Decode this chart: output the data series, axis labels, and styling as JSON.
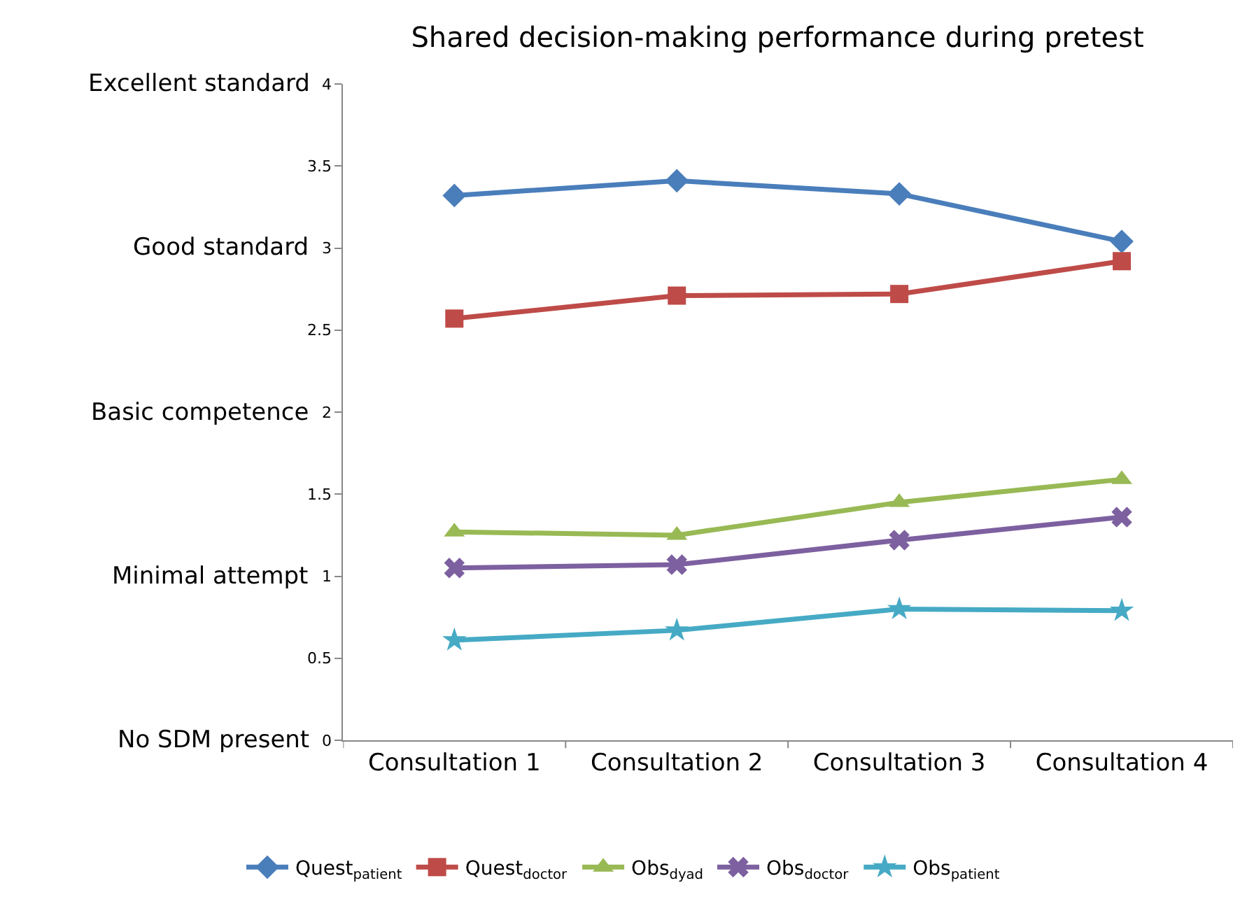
{
  "chart_data": {
    "type": "line",
    "title": "Shared decision-making performance during pretest",
    "categories": [
      "Consultation 1",
      "Consultation 2",
      "Consultation 3",
      "Consultation 4"
    ],
    "series": [
      {
        "name": "Quest$_{patient}$",
        "color": "#4a7ebb",
        "marker": "diamond",
        "values": [
          3.32,
          3.41,
          3.33,
          3.04
        ]
      },
      {
        "name": "Quest$_{doctor}$",
        "color": "#be4b48",
        "marker": "square",
        "values": [
          2.57,
          2.71,
          2.72,
          2.92
        ]
      },
      {
        "name": "Obs$_{dyad}$",
        "color": "#98b954",
        "marker": "triangle",
        "values": [
          1.27,
          1.25,
          1.45,
          1.59
        ]
      },
      {
        "name": "Obs$_{doctor}$",
        "color": "#7d60a0",
        "marker": "cross",
        "values": [
          1.05,
          1.07,
          1.22,
          1.36
        ]
      },
      {
        "name": "Obs$_{patient}$",
        "color": "#46aac5",
        "marker": "star",
        "values": [
          0.61,
          0.67,
          0.8,
          0.79
        ]
      }
    ],
    "ylim": [
      0,
      4
    ],
    "yticks": [
      0,
      0.5,
      1,
      1.5,
      2,
      2.5,
      3,
      3.5,
      4
    ],
    "annotations": [
      "Excellent standard",
      "Good standard",
      "Basic competence",
      "Minimal attempt",
      "No SDM present"
    ],
    "legend": "bottom",
    "line_style": "solid"
  }
}
